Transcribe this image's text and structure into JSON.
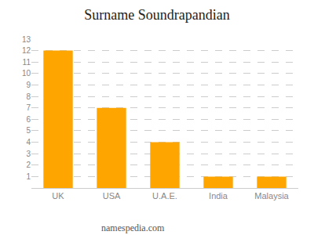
{
  "chart_data": {
    "type": "bar",
    "title": "Surname Soundrapandian",
    "categories": [
      "UK",
      "USA",
      "U.A.E.",
      "India",
      "Malaysia"
    ],
    "values": [
      12,
      7,
      4,
      1,
      1
    ],
    "color": "#FFA500",
    "ylim": [
      0,
      13
    ],
    "yticks": [
      1,
      2,
      3,
      4,
      5,
      6,
      7,
      8,
      9,
      10,
      11,
      12,
      13
    ],
    "grid": true,
    "annotations": [
      "namespedia.com"
    ]
  }
}
